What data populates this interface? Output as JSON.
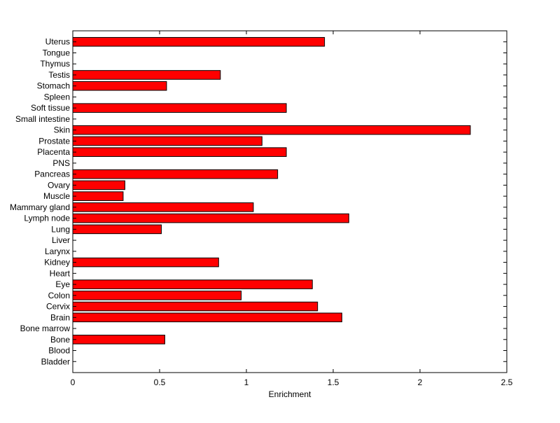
{
  "chart_data": {
    "type": "bar",
    "orientation": "horizontal",
    "title": "",
    "xlabel": "Enrichment",
    "ylabel": "",
    "xlim": [
      0,
      2.5
    ],
    "xticks": [
      0,
      0.5,
      1,
      1.5,
      2,
      2.5
    ],
    "xtick_labels": [
      "0",
      "0.5",
      "1",
      "1.5",
      "2",
      "2.5"
    ],
    "grid": false,
    "legend": false,
    "bar_color": "#ff0000",
    "bar_edge_color": "#000000",
    "categories": [
      "Uterus",
      "Tongue",
      "Thymus",
      "Testis",
      "Stomach",
      "Spleen",
      "Soft tissue",
      "Small intestine",
      "Skin",
      "Prostate",
      "Placenta",
      "PNS",
      "Pancreas",
      "Ovary",
      "Muscle",
      "Mammary gland",
      "Lymph node",
      "Lung",
      "Liver",
      "Larynx",
      "Kidney",
      "Heart",
      "Eye",
      "Colon",
      "Cervix",
      "Brain",
      "Bone marrow",
      "Bone",
      "Blood",
      "Bladder"
    ],
    "values": [
      1.45,
      0,
      0,
      0.85,
      0.54,
      0,
      1.23,
      0,
      2.29,
      1.09,
      1.23,
      0,
      1.18,
      0.3,
      0.29,
      1.04,
      1.59,
      0.51,
      0,
      0,
      0.84,
      0,
      1.38,
      0.97,
      1.41,
      1.55,
      0,
      0.53,
      0,
      0
    ]
  }
}
